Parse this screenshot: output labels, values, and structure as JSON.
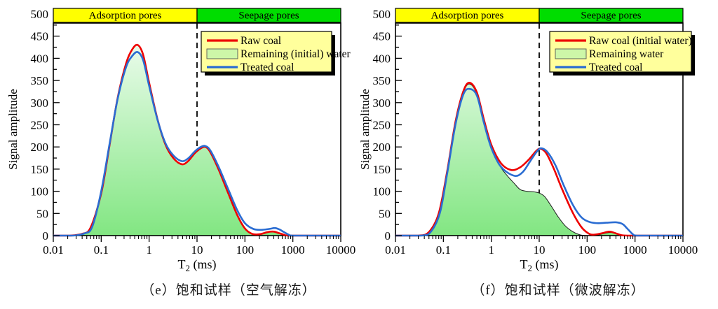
{
  "colors": {
    "raw": "#EE0000",
    "treated": "#2A6CD2",
    "area_outline": "#1C1C1C",
    "area_gradient_top": "#F5FEF6",
    "area_gradient_bottom": "#82E682",
    "legend_bg": "#FFFF9C",
    "legend_swatch": "#CDF7A8",
    "band_yellow": "#FFFF00",
    "band_green": "#00DD00",
    "frame": "#000000",
    "divider": "#000000"
  },
  "chart_data": [
    {
      "key": "e",
      "type": "line",
      "caption": "（e）饱和试样（空气解冻）",
      "x_axis": {
        "label_base": "T",
        "label_sub": "2",
        "label_rest": " (ms)",
        "scale": "log",
        "min": 0.01,
        "max": 10000,
        "tick_labels": [
          "0.01",
          "0.1",
          "1",
          "10",
          "100",
          "1000",
          "10000"
        ]
      },
      "y_axis": {
        "label": "Signal amplitude",
        "min": 0,
        "max": 500,
        "major_step": 50,
        "minor_step": 25
      },
      "bands": [
        {
          "label": "Adsorption pores",
          "color": "#FFFF00",
          "from": 0.01,
          "to": 10
        },
        {
          "label": "Seepage pores",
          "color": "#00DD00",
          "from": 10,
          "to": 10000
        }
      ],
      "divider_at": 10,
      "legend": [
        {
          "label": "Raw coal",
          "swatch": "line",
          "color": "#EE0000"
        },
        {
          "label": "Remaining (initial) water",
          "swatch": "area",
          "color": "#CDF7A8"
        },
        {
          "label": "Treated coal",
          "swatch": "line",
          "color": "#2A6CD2"
        }
      ],
      "series": [
        {
          "name": "Remaining (initial) water",
          "kind": "area",
          "points": [
            [
              0.01,
              0
            ],
            [
              0.022,
              0
            ],
            [
              0.04,
              4
            ],
            [
              0.06,
              18
            ],
            [
              0.1,
              95
            ],
            [
              0.15,
              205
            ],
            [
              0.22,
              310
            ],
            [
              0.33,
              388
            ],
            [
              0.45,
              421
            ],
            [
              0.58,
              430
            ],
            [
              0.75,
              408
            ],
            [
              1.0,
              345
            ],
            [
              1.5,
              262
            ],
            [
              2.2,
              205
            ],
            [
              3.2,
              175
            ],
            [
              4.8,
              161
            ],
            [
              6.5,
              168
            ],
            [
              9,
              186
            ],
            [
              12,
              197
            ],
            [
              15,
              200
            ],
            [
              19,
              188
            ],
            [
              28,
              150
            ],
            [
              45,
              95
            ],
            [
              70,
              45
            ],
            [
              100,
              16
            ],
            [
              140,
              4
            ],
            [
              200,
              3
            ],
            [
              300,
              8
            ],
            [
              400,
              9
            ],
            [
              500,
              6
            ],
            [
              650,
              2
            ],
            [
              800,
              0
            ],
            [
              2000,
              0
            ],
            [
              10000,
              0
            ]
          ]
        },
        {
          "name": "Raw coal",
          "kind": "line",
          "color": "#EE0000",
          "points": [
            [
              0.01,
              0
            ],
            [
              0.022,
              0
            ],
            [
              0.04,
              4
            ],
            [
              0.06,
              18
            ],
            [
              0.1,
              95
            ],
            [
              0.15,
              205
            ],
            [
              0.22,
              310
            ],
            [
              0.33,
              388
            ],
            [
              0.45,
              421
            ],
            [
              0.58,
              430
            ],
            [
              0.75,
              408
            ],
            [
              1.0,
              345
            ],
            [
              1.5,
              262
            ],
            [
              2.2,
              205
            ],
            [
              3.2,
              175
            ],
            [
              4.8,
              161
            ],
            [
              6.5,
              168
            ],
            [
              9,
              186
            ],
            [
              12,
              197
            ],
            [
              15,
              200
            ],
            [
              19,
              188
            ],
            [
              28,
              150
            ],
            [
              45,
              95
            ],
            [
              70,
              45
            ],
            [
              100,
              16
            ],
            [
              140,
              4
            ],
            [
              200,
              3
            ],
            [
              300,
              8
            ],
            [
              400,
              9
            ],
            [
              500,
              6
            ],
            [
              650,
              2
            ],
            [
              800,
              0
            ],
            [
              2000,
              0
            ],
            [
              10000,
              0
            ]
          ]
        },
        {
          "name": "Treated coal",
          "kind": "line",
          "color": "#2A6CD2",
          "points": [
            [
              0.01,
              0
            ],
            [
              0.026,
              0
            ],
            [
              0.045,
              5
            ],
            [
              0.065,
              20
            ],
            [
              0.1,
              100
            ],
            [
              0.15,
              208
            ],
            [
              0.22,
              308
            ],
            [
              0.33,
              380
            ],
            [
              0.45,
              406
            ],
            [
              0.58,
              414
            ],
            [
              0.75,
              396
            ],
            [
              1.0,
              338
            ],
            [
              1.5,
              261
            ],
            [
              2.2,
              208
            ],
            [
              3.2,
              181
            ],
            [
              4.8,
              168
            ],
            [
              6.5,
              174
            ],
            [
              9,
              190
            ],
            [
              12,
              200
            ],
            [
              15,
              202
            ],
            [
              19,
              192
            ],
            [
              28,
              156
            ],
            [
              45,
              104
            ],
            [
              70,
              56
            ],
            [
              100,
              28
            ],
            [
              150,
              15
            ],
            [
              220,
              13
            ],
            [
              320,
              15
            ],
            [
              420,
              17
            ],
            [
              520,
              14
            ],
            [
              650,
              8
            ],
            [
              820,
              2
            ],
            [
              1000,
              0
            ],
            [
              3000,
              0
            ],
            [
              10000,
              0
            ]
          ]
        }
      ]
    },
    {
      "key": "f",
      "type": "line",
      "caption": "（f）饱和试样（微波解冻）",
      "x_axis": {
        "label_base": "T",
        "label_sub": "2",
        "label_rest": " (ms)",
        "scale": "log",
        "min": 0.01,
        "max": 10000,
        "tick_labels": [
          "0.01",
          "0.1",
          "1",
          "10",
          "100",
          "1000",
          "10000"
        ]
      },
      "y_axis": {
        "label": "Signal amplitude",
        "min": 0,
        "max": 500,
        "major_step": 50,
        "minor_step": 25
      },
      "bands": [
        {
          "label": "Adsorption pores",
          "color": "#FFFF00",
          "from": 0.01,
          "to": 10
        },
        {
          "label": "Seepage pores",
          "color": "#00DD00",
          "from": 10,
          "to": 10000
        }
      ],
      "divider_at": 10,
      "legend": [
        {
          "label": "Raw coal (initial water)",
          "swatch": "line",
          "color": "#EE0000"
        },
        {
          "label": "Remaining water",
          "swatch": "area",
          "color": "#CDF7A8"
        },
        {
          "label": "Treated coal",
          "swatch": "line",
          "color": "#2A6CD2"
        }
      ],
      "series": [
        {
          "name": "Remaining water",
          "kind": "area",
          "points": [
            [
              0.01,
              0
            ],
            [
              0.03,
              0
            ],
            [
              0.05,
              8
            ],
            [
              0.08,
              48
            ],
            [
              0.12,
              142
            ],
            [
              0.18,
              255
            ],
            [
              0.26,
              322
            ],
            [
              0.35,
              342
            ],
            [
              0.5,
              319
            ],
            [
              0.7,
              258
            ],
            [
              1.0,
              200
            ],
            [
              1.5,
              158
            ],
            [
              2.2,
              134
            ],
            [
              3,
              118
            ],
            [
              4,
              104
            ],
            [
              5.5,
              100
            ],
            [
              7.5,
              99
            ],
            [
              10,
              96
            ],
            [
              13,
              88
            ],
            [
              18,
              66
            ],
            [
              25,
              42
            ],
            [
              35,
              22
            ],
            [
              50,
              9
            ],
            [
              70,
              2
            ],
            [
              100,
              0
            ],
            [
              160,
              1
            ],
            [
              250,
              6
            ],
            [
              340,
              7
            ],
            [
              450,
              3
            ],
            [
              560,
              0
            ],
            [
              2000,
              0
            ],
            [
              10000,
              0
            ]
          ]
        },
        {
          "name": "Raw coal (initial water)",
          "kind": "line",
          "color": "#EE0000",
          "points": [
            [
              0.01,
              0
            ],
            [
              0.03,
              0
            ],
            [
              0.05,
              8
            ],
            [
              0.08,
              50
            ],
            [
              0.12,
              145
            ],
            [
              0.18,
              258
            ],
            [
              0.26,
              325
            ],
            [
              0.35,
              345
            ],
            [
              0.5,
              323
            ],
            [
              0.7,
              262
            ],
            [
              1.0,
              205
            ],
            [
              1.6,
              163
            ],
            [
              2.6,
              148
            ],
            [
              4,
              154
            ],
            [
              6,
              171
            ],
            [
              8.5,
              190
            ],
            [
              10.5,
              196
            ],
            [
              14,
              186
            ],
            [
              20,
              152
            ],
            [
              30,
              105
            ],
            [
              50,
              52
            ],
            [
              75,
              20
            ],
            [
              100,
              7
            ],
            [
              130,
              2
            ],
            [
              200,
              5
            ],
            [
              290,
              9
            ],
            [
              400,
              5
            ],
            [
              520,
              1
            ],
            [
              700,
              0
            ],
            [
              2000,
              0
            ],
            [
              10000,
              0
            ]
          ]
        },
        {
          "name": "Treated coal",
          "kind": "line",
          "color": "#2A6CD2",
          "points": [
            [
              0.01,
              0
            ],
            [
              0.035,
              0
            ],
            [
              0.055,
              9
            ],
            [
              0.085,
              52
            ],
            [
              0.12,
              140
            ],
            [
              0.18,
              252
            ],
            [
              0.26,
              318
            ],
            [
              0.35,
              331
            ],
            [
              0.5,
              316
            ],
            [
              0.7,
              255
            ],
            [
              1.0,
              198
            ],
            [
              1.6,
              155
            ],
            [
              3,
              135
            ],
            [
              4.5,
              143
            ],
            [
              6.5,
              168
            ],
            [
              9,
              190
            ],
            [
              11,
              197
            ],
            [
              15,
              188
            ],
            [
              22,
              158
            ],
            [
              32,
              115
            ],
            [
              50,
              70
            ],
            [
              75,
              42
            ],
            [
              110,
              31
            ],
            [
              160,
              28
            ],
            [
              250,
              29
            ],
            [
              400,
              30
            ],
            [
              550,
              26
            ],
            [
              700,
              15
            ],
            [
              900,
              3
            ],
            [
              1100,
              0
            ],
            [
              3000,
              0
            ],
            [
              10000,
              0
            ]
          ]
        }
      ]
    }
  ]
}
